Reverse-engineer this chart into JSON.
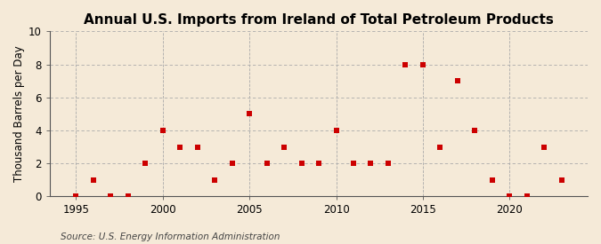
{
  "title": "Annual U.S. Imports from Ireland of Total Petroleum Products",
  "ylabel": "Thousand Barrels per Day",
  "source": "Source: U.S. Energy Information Administration",
  "years": [
    1995,
    1996,
    1997,
    1998,
    1999,
    2000,
    2001,
    2002,
    2003,
    2004,
    2005,
    2006,
    2007,
    2008,
    2009,
    2010,
    2011,
    2012,
    2013,
    2014,
    2015,
    2016,
    2017,
    2018,
    2019,
    2020,
    2021,
    2022,
    2023
  ],
  "values": [
    0,
    1,
    0,
    0,
    2,
    4,
    3,
    3,
    1,
    2,
    5,
    2,
    3,
    2,
    2,
    4,
    2,
    2,
    2,
    8,
    8,
    3,
    7,
    4,
    1,
    0,
    0,
    3,
    1
  ],
  "marker_color": "#cc0000",
  "marker_size": 4,
  "background_color": "#f5ead8",
  "axis_line_color": "#555555",
  "horiz_grid_color": "#aaaaaa",
  "vert_grid_color": "#aaaaaa",
  "xlim": [
    1993.5,
    2024.5
  ],
  "ylim": [
    0,
    10
  ],
  "yticks": [
    0,
    2,
    4,
    6,
    8,
    10
  ],
  "xticks": [
    1995,
    2000,
    2005,
    2010,
    2015,
    2020
  ],
  "title_fontsize": 11,
  "label_fontsize": 8.5,
  "tick_fontsize": 8.5,
  "source_fontsize": 7.5
}
